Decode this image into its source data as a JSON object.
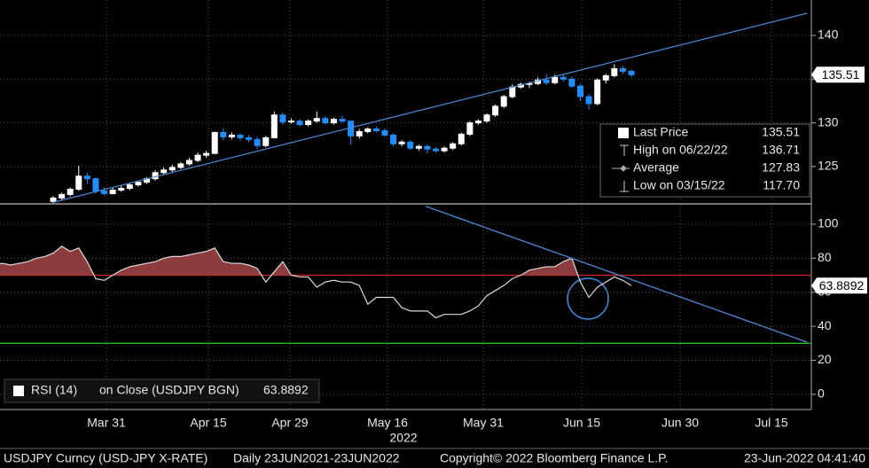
{
  "x_axis": {
    "xlim": [
      0.74,
      96.17
    ],
    "xticks": [
      {
        "value": 13.26,
        "label": "Mar 31"
      },
      {
        "value": 25.25,
        "label": "Apr 15"
      },
      {
        "value": 34.84,
        "label": "Apr 29"
      },
      {
        "value": 46.32,
        "label": "May 16"
      },
      {
        "value": 57.58,
        "label": "May 31"
      },
      {
        "value": 69.16,
        "label": "Jun 15"
      },
      {
        "value": 80.74,
        "label": "Jun 30"
      },
      {
        "value": 91.48,
        "label": "Jul 15"
      }
    ],
    "label": "2022"
  },
  "chart_data": [
    {
      "type": "candlestick",
      "open": [
        null,
        null,
        null,
        null,
        null,
        null,
        null,
        121.0,
        121.4,
        121.8,
        122.4,
        123.9,
        123.6,
        122.2,
        121.9,
        122.3,
        122.5,
        122.9,
        123.2,
        123.6,
        124.3,
        124.6,
        124.9,
        125.3,
        125.7,
        126.3,
        126.5,
        128.9,
        128.4,
        128.6,
        128.3,
        128.1,
        127.4,
        128.3,
        130.9,
        130.1,
        130.2,
        129.8,
        130.2,
        130.5,
        130.0,
        130.4,
        130.2,
        128.5,
        129.0,
        129.3,
        129.1,
        128.6,
        127.6,
        127.8,
        127.1,
        127.3,
        127.0,
        126.8,
        127.1,
        127.6,
        128.7,
        130.0,
        130.2,
        130.9,
        131.9,
        133.0,
        134.1,
        134.4,
        134.5,
        134.9,
        134.6,
        135.2,
        135.0,
        134.2,
        133.0,
        132.2,
        134.9,
        135.4,
        136.2,
        135.9
      ],
      "high": [
        null,
        null,
        null,
        null,
        null,
        null,
        null,
        121.6,
        122.0,
        122.6,
        125.1,
        124.3,
        123.8,
        122.6,
        122.6,
        122.8,
        123.1,
        123.4,
        123.8,
        124.6,
        124.9,
        125.2,
        125.5,
        126.0,
        126.6,
        126.8,
        129.0,
        129.4,
        128.9,
        128.8,
        128.6,
        128.4,
        128.5,
        131.3,
        131.2,
        130.5,
        130.4,
        130.4,
        131.3,
        130.8,
        130.6,
        130.8,
        130.3,
        129.3,
        129.5,
        129.6,
        129.4,
        128.8,
        128.0,
        128.0,
        127.5,
        127.5,
        127.2,
        127.3,
        127.8,
        128.9,
        130.2,
        130.4,
        131.1,
        132.1,
        133.2,
        134.4,
        134.6,
        134.7,
        135.2,
        135.6,
        135.5,
        135.6,
        135.3,
        134.5,
        133.3,
        135.1,
        135.6,
        136.71,
        136.5,
        136.1
      ],
      "low": [
        null,
        null,
        null,
        null,
        null,
        null,
        null,
        120.8,
        121.2,
        121.6,
        122.2,
        123.0,
        121.9,
        121.7,
        121.8,
        122.1,
        122.3,
        122.7,
        123.0,
        123.4,
        124.1,
        124.4,
        124.7,
        125.1,
        125.5,
        126.0,
        126.4,
        128.0,
        128.1,
        128.0,
        127.8,
        127.0,
        127.2,
        128.2,
        129.8,
        129.9,
        129.6,
        129.6,
        130.0,
        129.8,
        129.8,
        130.0,
        127.5,
        128.2,
        128.8,
        128.9,
        128.4,
        127.3,
        127.3,
        126.9,
        126.8,
        126.5,
        126.6,
        126.6,
        126.9,
        127.4,
        128.5,
        129.8,
        130.0,
        130.7,
        131.7,
        132.8,
        133.9,
        134.0,
        134.3,
        134.3,
        134.4,
        134.7,
        134.0,
        132.5,
        131.5,
        132.0,
        134.5,
        135.2,
        135.6,
        135.2
      ],
      "close": [
        null,
        null,
        null,
        null,
        null,
        null,
        null,
        121.4,
        121.8,
        122.4,
        123.9,
        123.6,
        122.2,
        121.9,
        122.3,
        122.5,
        122.9,
        123.2,
        123.6,
        124.3,
        124.6,
        124.9,
        125.3,
        125.7,
        126.3,
        126.5,
        128.9,
        128.4,
        128.6,
        128.3,
        128.1,
        127.4,
        128.3,
        130.9,
        130.1,
        130.2,
        129.8,
        130.2,
        130.5,
        130.0,
        130.4,
        130.2,
        128.5,
        129.0,
        129.3,
        129.1,
        128.6,
        127.6,
        127.8,
        127.1,
        127.3,
        127.0,
        126.8,
        127.1,
        127.6,
        128.7,
        130.0,
        130.2,
        130.9,
        131.9,
        133.0,
        134.1,
        134.4,
        134.5,
        134.9,
        134.6,
        135.2,
        135.0,
        134.2,
        133.0,
        132.2,
        134.9,
        135.4,
        136.2,
        135.9,
        135.51
      ],
      "up_color": "#ffffff",
      "down_color": "#1f8fff",
      "ylim": [
        120.93,
        144.06
      ],
      "yticks": [
        125,
        130,
        135,
        140
      ],
      "grid": true,
      "trendline": {
        "color": "#4a8ad8",
        "start": [
          7,
          120.9
        ],
        "end": [
          95.65,
          142.54
        ]
      },
      "last_label": "135.51",
      "legend": [
        {
          "label": "Last Price",
          "value": "135.51"
        },
        {
          "label": "High on 06/22/22",
          "value": "136.71"
        },
        {
          "label": "Average",
          "value": "127.83"
        },
        {
          "label": "Low on 03/15/22",
          "value": "117.70"
        }
      ]
    },
    {
      "type": "line",
      "series": [
        {
          "name": "RSI (14)",
          "color": "#dcdcdc",
          "values": [
            76,
            77,
            76,
            77,
            78,
            80,
            81,
            83,
            87,
            84,
            86,
            78,
            68,
            67,
            70,
            73,
            75,
            76,
            77,
            78,
            80,
            81,
            81,
            82,
            83,
            84,
            86,
            78,
            77,
            77,
            76,
            74,
            66,
            72,
            78,
            70,
            69,
            69,
            63,
            66,
            67,
            66,
            66,
            64,
            53,
            57,
            57,
            57,
            51,
            49,
            49,
            49,
            45,
            47,
            47,
            47,
            49,
            52,
            58,
            61,
            64,
            68,
            70,
            73,
            74,
            75,
            75,
            78,
            80,
            66,
            57,
            63,
            66,
            69,
            67,
            63.8892
          ]
        }
      ],
      "source": "on Close (USDJPY BGN)",
      "last_label": "63.8892",
      "ylim": [
        -8.9,
        110.9
      ],
      "yticks": [
        0,
        20,
        40,
        60,
        80,
        100
      ],
      "grid": true,
      "reference_lines": [
        {
          "value": 70,
          "color": "#e02020"
        },
        {
          "value": 30,
          "color": "#22bb22"
        }
      ],
      "overbought_fill": "#8c3c3c",
      "trendline": {
        "color": "#4a8ad8",
        "start": [
          50.8,
          110.5
        ],
        "end": [
          95.65,
          30.7
        ]
      }
    }
  ],
  "footer": {
    "left": "USDJPY Curncy (USD-JPY X-RATE)",
    "range": "Daily 23JUN2021-23JUN2022",
    "copyright": "Copyright© 2022 Bloomberg Finance L.P.",
    "timestamp": "23-Jun-2022 04:41:40"
  }
}
